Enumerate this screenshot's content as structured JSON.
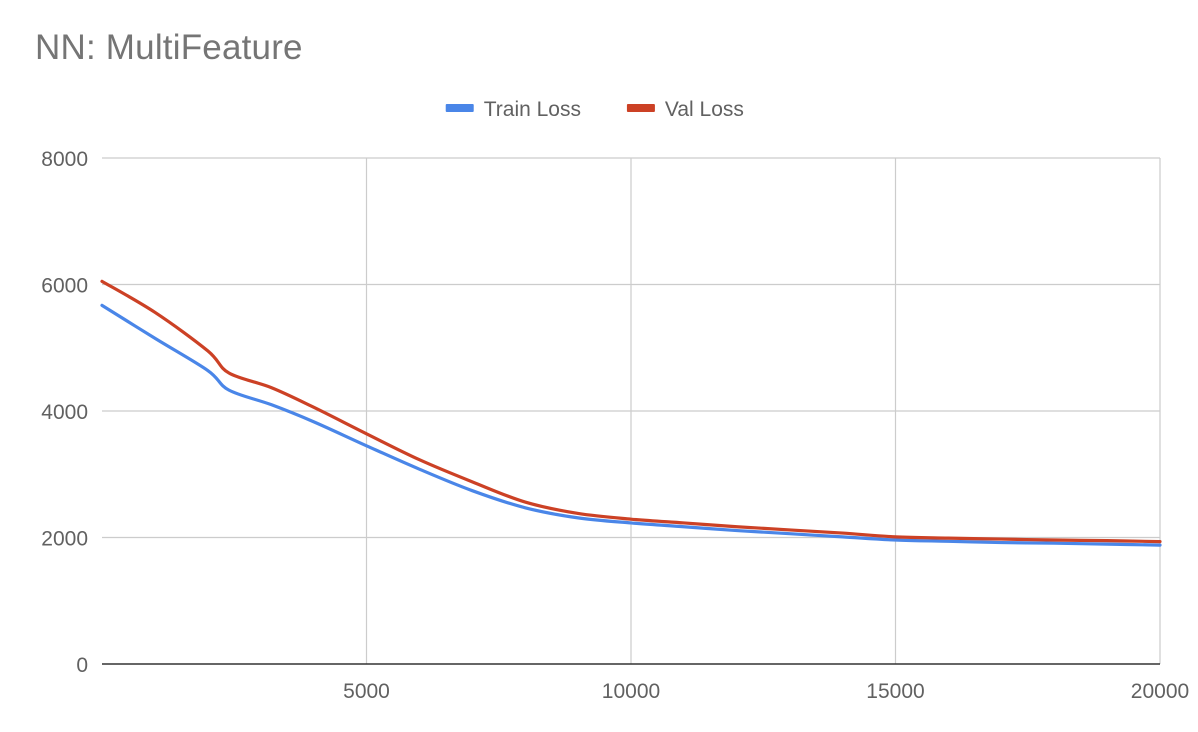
{
  "chart_data": {
    "type": "line",
    "title": "NN: MultiFeature",
    "xlabel": "",
    "ylabel": "",
    "xlim": [
      0,
      20000
    ],
    "ylim": [
      0,
      8000
    ],
    "x_ticks": [
      5000,
      10000,
      15000,
      20000
    ],
    "y_ticks": [
      0,
      2000,
      4000,
      6000,
      8000
    ],
    "grid": true,
    "legend_position": "top",
    "series": [
      {
        "name": "Train Loss",
        "color": "#4a86e8",
        "points": [
          [
            0,
            5670
          ],
          [
            1000,
            5150
          ],
          [
            2000,
            4640
          ],
          [
            2400,
            4330
          ],
          [
            3200,
            4100
          ],
          [
            4000,
            3830
          ],
          [
            5000,
            3450
          ],
          [
            6000,
            3080
          ],
          [
            7000,
            2740
          ],
          [
            8000,
            2470
          ],
          [
            9000,
            2310
          ],
          [
            10000,
            2230
          ],
          [
            11000,
            2170
          ],
          [
            12000,
            2110
          ],
          [
            13000,
            2060
          ],
          [
            14000,
            2010
          ],
          [
            15000,
            1960
          ],
          [
            16000,
            1940
          ],
          [
            17000,
            1920
          ],
          [
            18000,
            1910
          ],
          [
            19000,
            1895
          ],
          [
            20000,
            1880
          ]
        ]
      },
      {
        "name": "Val Loss",
        "color": "#cc4125",
        "points": [
          [
            0,
            6050
          ],
          [
            1000,
            5560
          ],
          [
            2000,
            4950
          ],
          [
            2400,
            4600
          ],
          [
            3200,
            4370
          ],
          [
            4000,
            4060
          ],
          [
            5000,
            3640
          ],
          [
            6000,
            3230
          ],
          [
            7000,
            2880
          ],
          [
            8000,
            2560
          ],
          [
            9000,
            2380
          ],
          [
            10000,
            2290
          ],
          [
            11000,
            2230
          ],
          [
            12000,
            2170
          ],
          [
            13000,
            2120
          ],
          [
            14000,
            2070
          ],
          [
            15000,
            2010
          ],
          [
            16000,
            1990
          ],
          [
            17000,
            1975
          ],
          [
            18000,
            1960
          ],
          [
            19000,
            1950
          ],
          [
            20000,
            1935
          ]
        ]
      }
    ]
  }
}
